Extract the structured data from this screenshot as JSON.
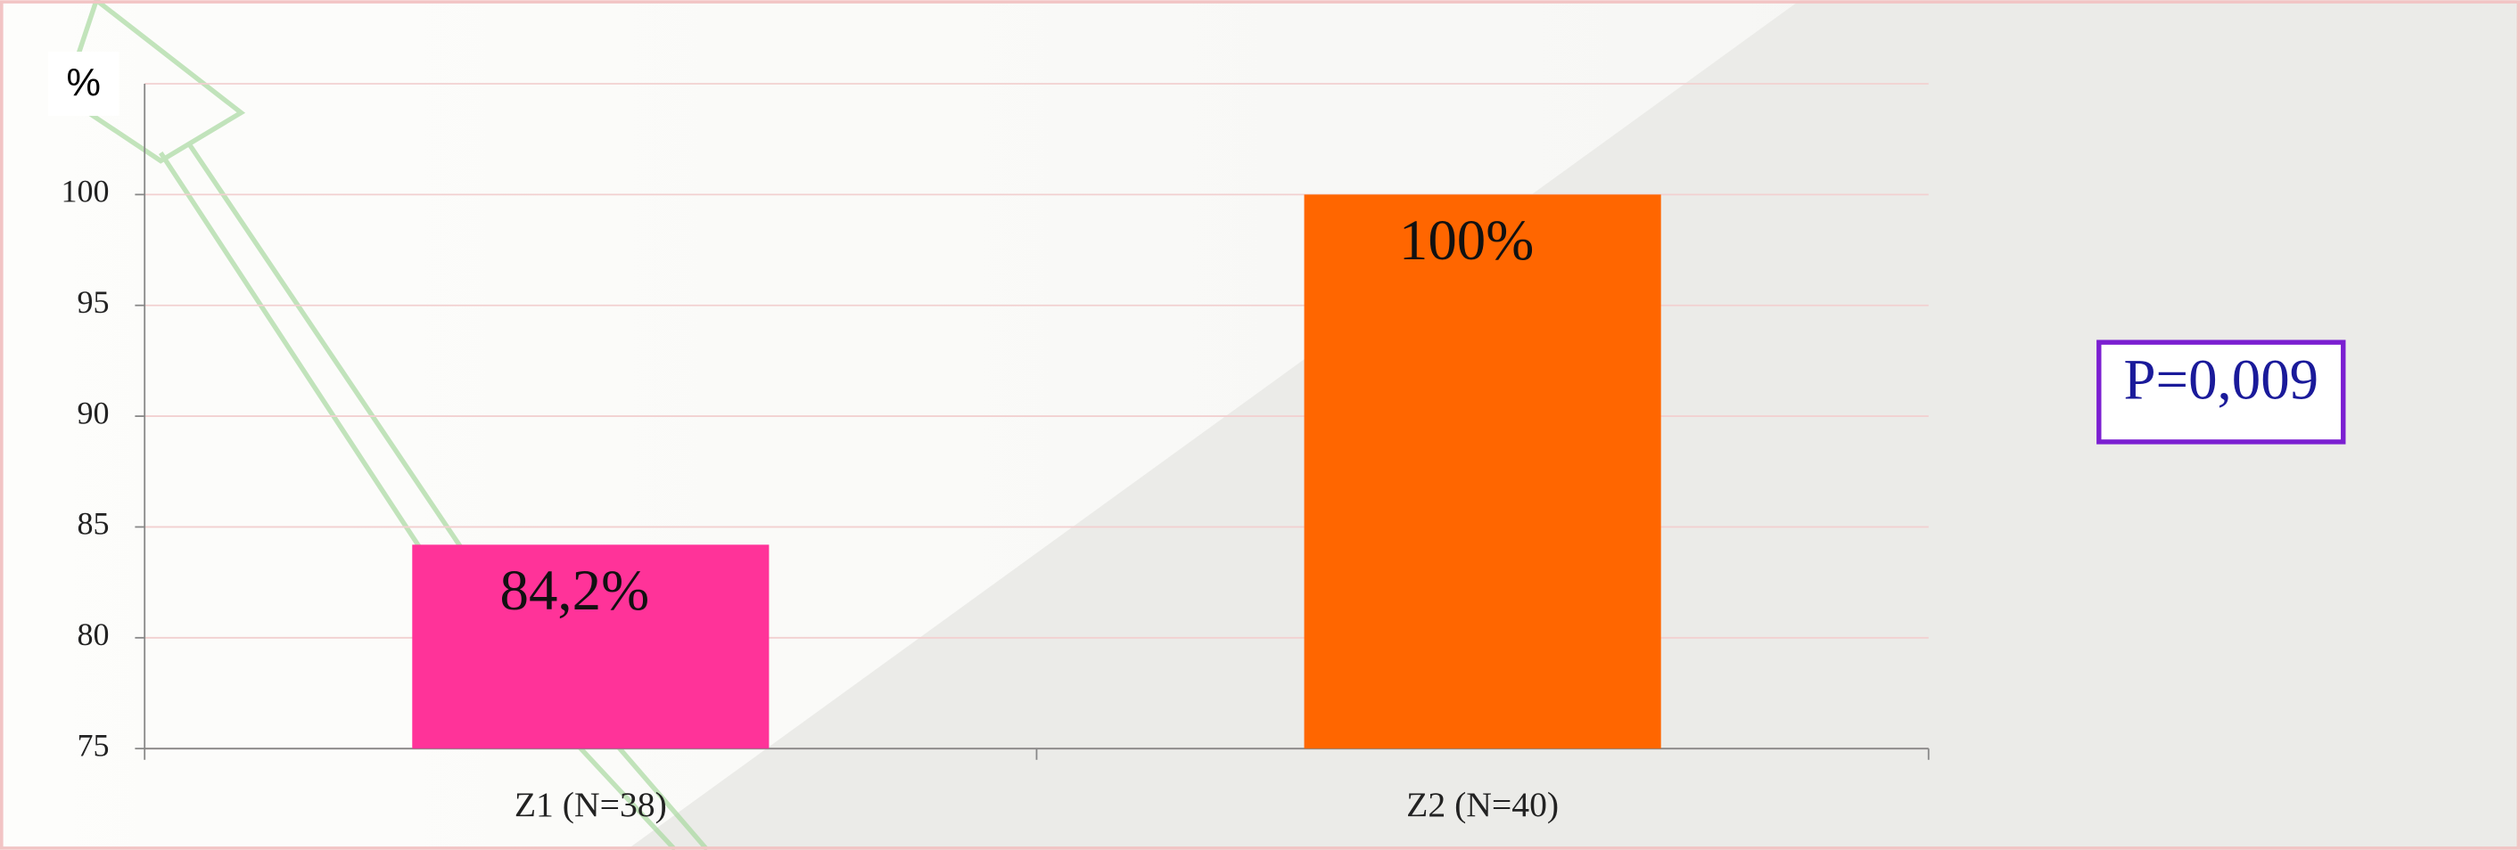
{
  "chart_data": {
    "type": "bar",
    "y_label": "%",
    "categories": [
      "Z1 (N=38)",
      "Z2 (N=40)"
    ],
    "values": [
      84.2,
      100
    ],
    "value_labels": [
      "84,2%",
      "100%"
    ],
    "colors": [
      "#ff3399",
      "#ff6600"
    ],
    "ylim": [
      75,
      105
    ],
    "yticks": [
      75,
      80,
      85,
      90,
      95,
      100
    ],
    "grid": true,
    "annotation": "P=0,009"
  }
}
